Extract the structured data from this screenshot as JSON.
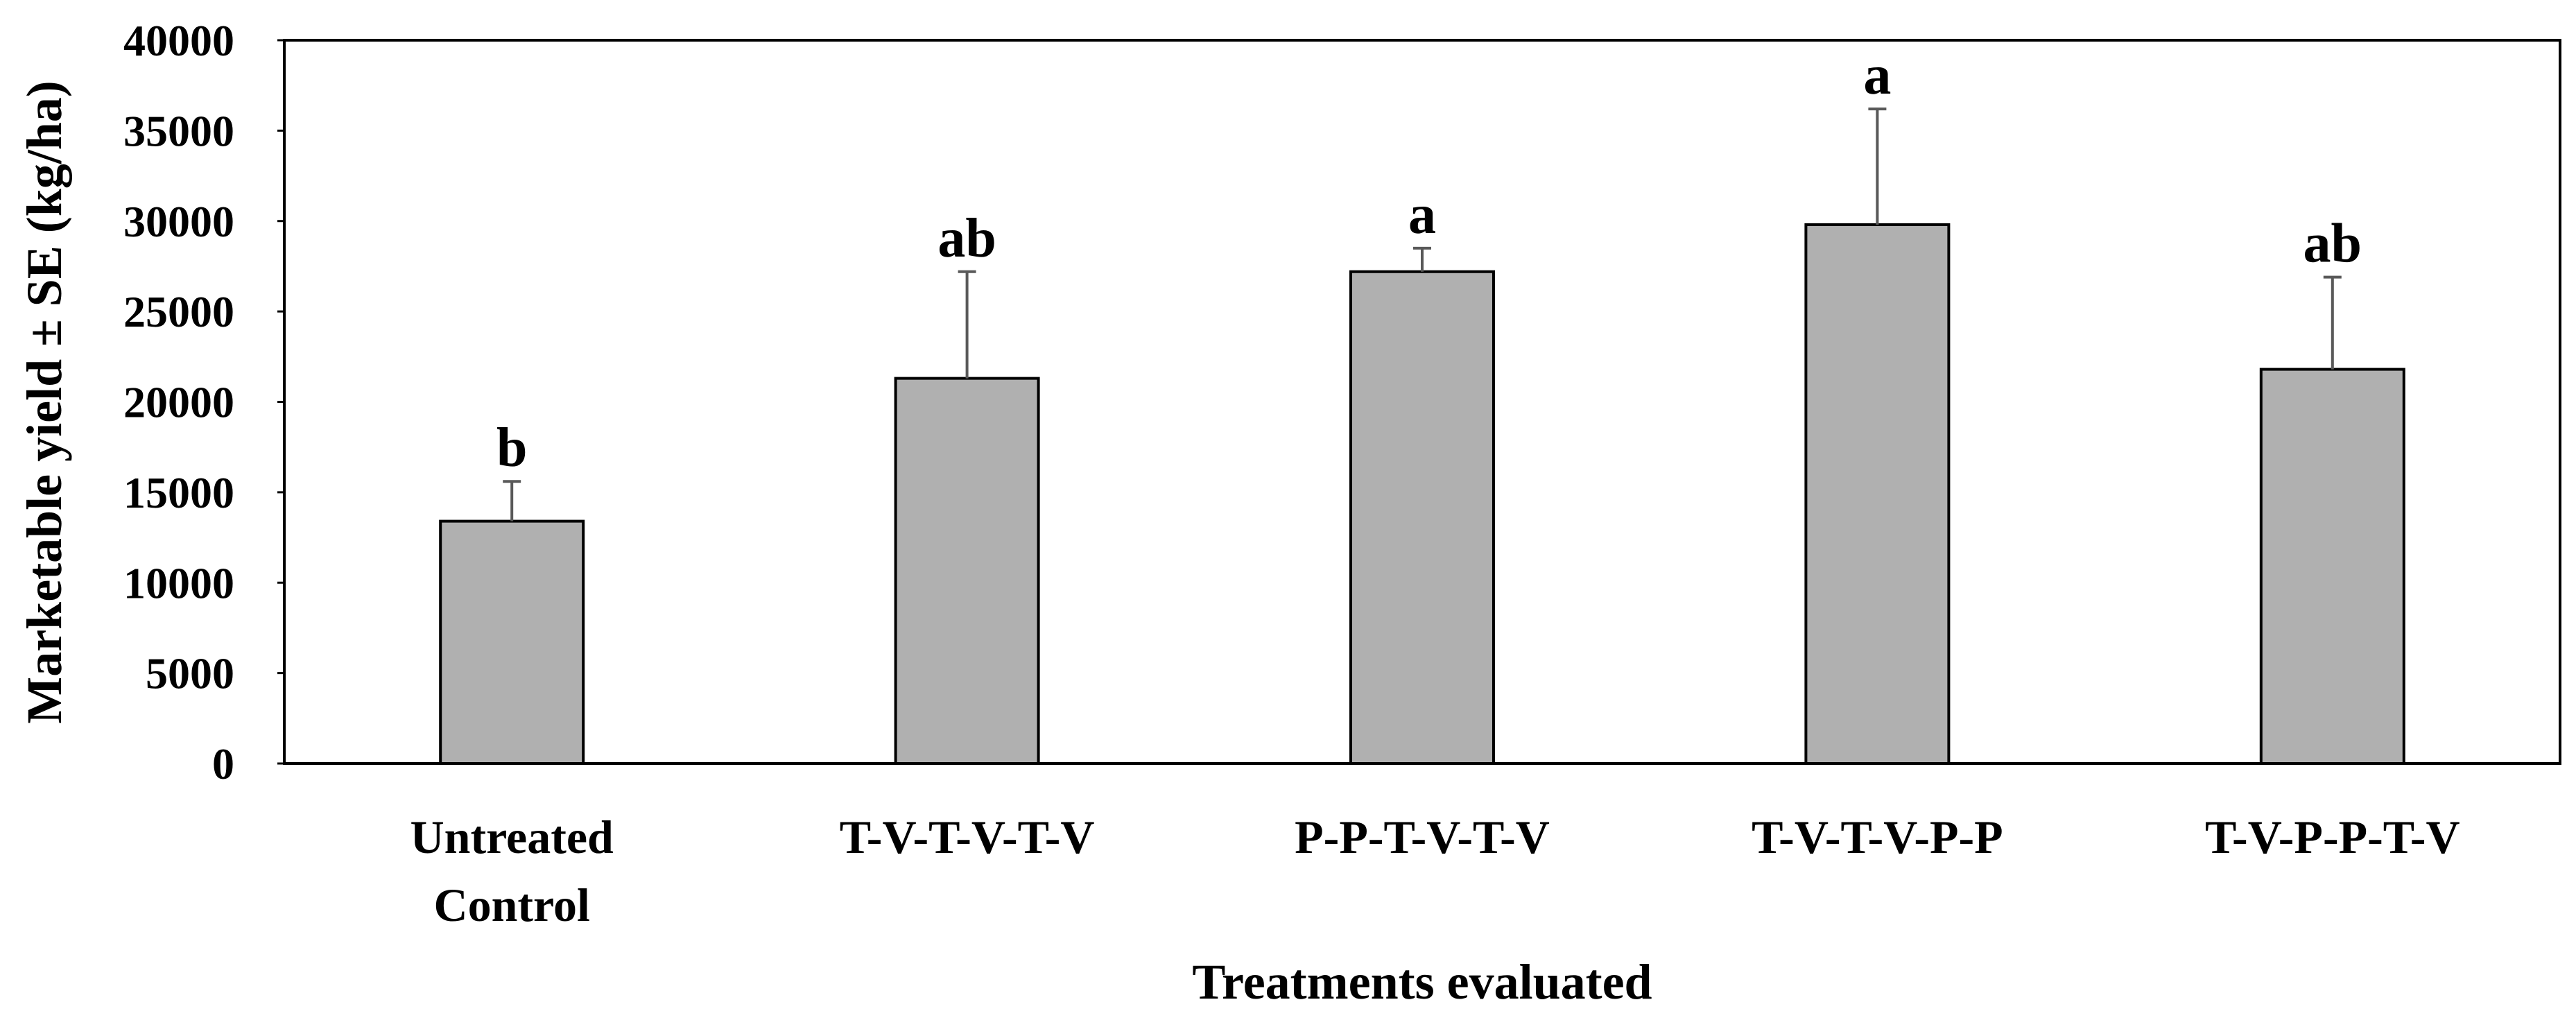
{
  "chart_data": {
    "type": "bar",
    "title": "",
    "xlabel": "Treatments evaluated",
    "ylabel": "Marketable yield ± SE (kg/ha)",
    "ylim": [
      0,
      40000
    ],
    "yticks": [
      "0",
      "5000",
      "10000",
      "15000",
      "20000",
      "25000",
      "30000",
      "35000",
      "40000"
    ],
    "categories": [
      [
        "Untreated",
        "Control"
      ],
      [
        "T-V-T-V-T-V"
      ],
      [
        "P-P-T-V-T-V"
      ],
      [
        "T-V-T-V-P-P"
      ],
      [
        "T-V-P-P-T-V"
      ]
    ],
    "values": [
      13400,
      21300,
      27200,
      29800,
      21800
    ],
    "errors": [
      2200,
      5900,
      1300,
      6400,
      5100
    ],
    "significance_letters": [
      "b",
      "ab",
      "a",
      "a",
      "ab"
    ],
    "grid": false,
    "legend": "none",
    "colors": {
      "bar_fill": "#b0b0b0",
      "bar_stroke": "#000000",
      "error_bar": "#595959",
      "axis": "#000000"
    }
  }
}
